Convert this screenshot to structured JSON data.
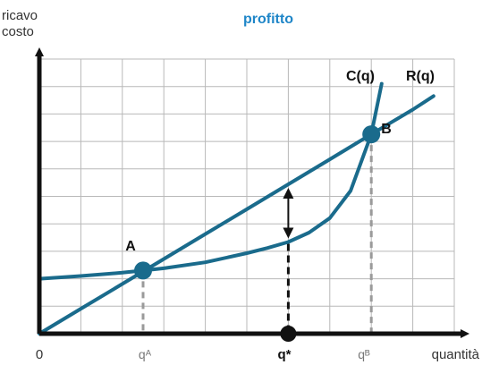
{
  "chart_data": {
    "type": "line",
    "title": "profitto",
    "ylabel": [
      "ricavo",
      "costo"
    ],
    "xlabel": "quantità",
    "origin_label": "0",
    "xlim": [
      0,
      10
    ],
    "ylim": [
      0,
      10
    ],
    "grid": true,
    "tick_labels": [
      {
        "text": "qᴬ",
        "x": 2.5
      },
      {
        "text": "q*",
        "x": 6
      },
      {
        "text": "qᴮ",
        "x": 8
      }
    ],
    "series": [
      {
        "name": "R(q)",
        "x": [
          0,
          1,
          2,
          3,
          4,
          5,
          6,
          7,
          8,
          9,
          9.5
        ],
        "y": [
          0,
          0.91,
          1.81,
          2.72,
          3.63,
          4.53,
          5.44,
          6.35,
          7.26,
          8.16,
          8.65
        ]
      },
      {
        "name": "C(q)",
        "x": [
          0,
          1,
          2,
          2.5,
          3,
          4,
          5,
          5.5,
          6,
          6.5,
          7,
          7.5,
          8,
          8.25
        ],
        "y": [
          2.0,
          2.1,
          2.22,
          2.3,
          2.38,
          2.6,
          2.93,
          3.12,
          3.34,
          3.68,
          4.21,
          5.2,
          7.26,
          9.1
        ]
      }
    ],
    "points": [
      {
        "label": "A",
        "x": 2.5,
        "y": 2.3
      },
      {
        "label": "B",
        "x": 8,
        "y": 7.26
      }
    ],
    "max_profit_x": 6,
    "colors": {
      "curve": "#1a6b8c",
      "accent": "#1f86c8",
      "axis": "#111111",
      "grid": "#b8b8b8",
      "guide": "#9a9a9a"
    }
  }
}
